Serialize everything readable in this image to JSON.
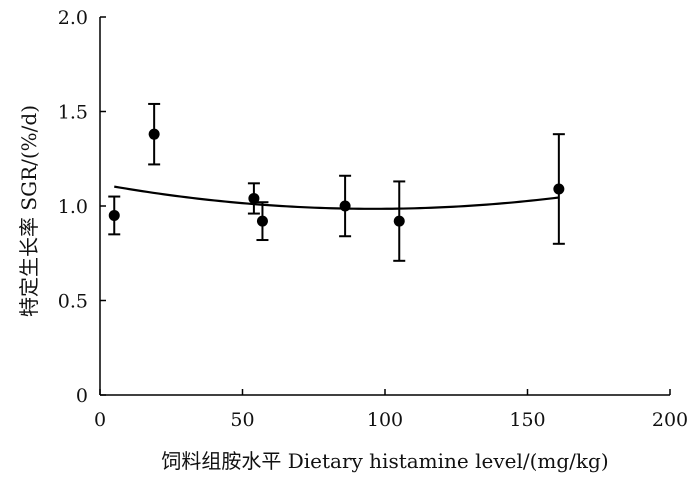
{
  "chart_data": {
    "type": "scatter",
    "xlabel": "饲料组胺水平  Dietary histamine level/(mg/kg)",
    "ylabel": "特定生长率  SGR/(%/d)",
    "xlim": [
      0,
      200
    ],
    "ylim": [
      0,
      2.0
    ],
    "x_ticks": [
      0,
      50,
      100,
      150,
      200
    ],
    "x_tick_labels": [
      "0",
      "50",
      "100",
      "150",
      "200"
    ],
    "y_ticks": [
      0,
      0.5,
      1.0,
      1.5,
      2.0
    ],
    "y_tick_labels": [
      "0",
      "0.5",
      "1.0",
      "1.5",
      "2.0"
    ],
    "grid": false,
    "series": [
      {
        "points": [
          {
            "x": 5,
            "y": 0.95,
            "err": 0.1
          },
          {
            "x": 19,
            "y": 1.38,
            "err": 0.16
          },
          {
            "x": 54,
            "y": 1.04,
            "err": 0.08
          },
          {
            "x": 57,
            "y": 0.92,
            "err": 0.1
          },
          {
            "x": 86,
            "y": 1.0,
            "err": 0.16
          },
          {
            "x": 105,
            "y": 0.92,
            "err": 0.21
          },
          {
            "x": 161,
            "y": 1.09,
            "err": 0.29
          }
        ]
      }
    ],
    "fit_curve": {
      "type": "quadratic",
      "x_range": [
        5,
        161
      ],
      "vertex_x": 96,
      "vertex_y": 0.985,
      "a": 1.42e-05
    }
  }
}
